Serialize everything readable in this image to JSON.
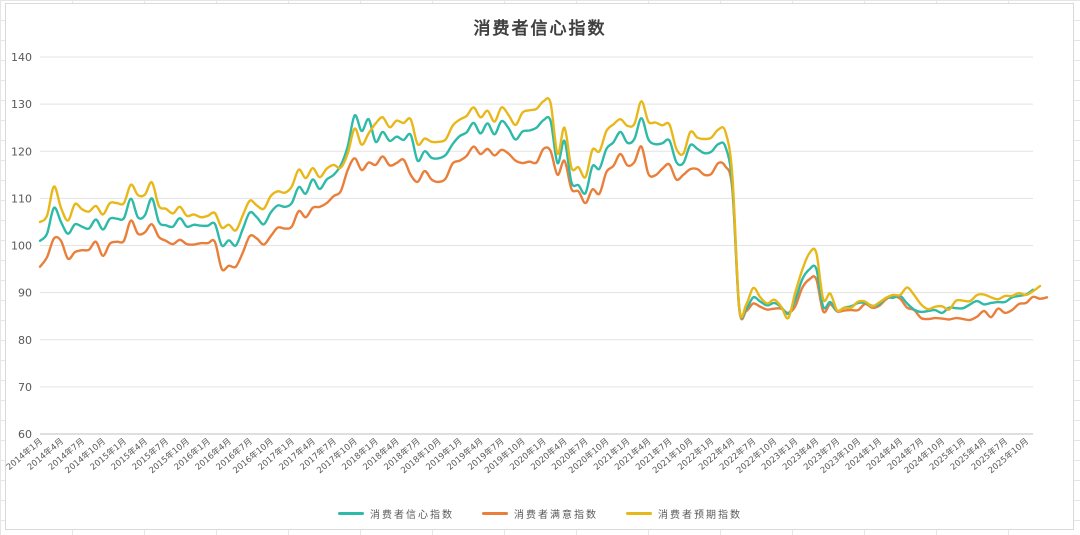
{
  "chart_data": {
    "type": "line",
    "title": "消费者信心指数",
    "xlabel": "",
    "ylabel": "",
    "ylim": [
      60,
      140
    ],
    "yticks": [
      60,
      70,
      80,
      90,
      100,
      110,
      120,
      130,
      140
    ],
    "grid": true,
    "legend": "bottom",
    "x_tick_labels": [
      "2014年1月",
      "2014年4月",
      "2014年7月",
      "2014年10月",
      "2015年1月",
      "2015年4月",
      "2015年7月",
      "2015年10月",
      "2016年1月",
      "2016年4月",
      "2016年7月",
      "2016年10月",
      "2017年1月",
      "2017年4月",
      "2017年7月",
      "2017年10月",
      "2018年1月",
      "2018年4月",
      "2018年7月",
      "2018年10月",
      "2019年1月",
      "2019年4月",
      "2019年7月",
      "2019年10月",
      "2020年1月",
      "2020年4月",
      "2020年7月",
      "2020年10月",
      "2021年1月",
      "2021年4月",
      "2021年7月",
      "2021年10月",
      "2022年1月",
      "2022年4月",
      "2022年7月",
      "2022年10月",
      "2023年1月",
      "2023年4月",
      "2023年7月",
      "2023年10月",
      "2024年1月",
      "2024年4月",
      "2024年7月",
      "2024年10月",
      "2025年1月",
      "2025年4月",
      "2025年7月",
      "2025年10月"
    ],
    "series": [
      {
        "name": "消费者信心指数",
        "color": "#2ebaa8",
        "values": [
          101,
          102.5,
          108,
          105,
          102.5,
          104.5,
          104,
          103.6,
          105.5,
          103.4,
          105.7,
          105.7,
          105.8,
          109.9,
          106,
          106.4,
          110,
          105,
          104.3,
          104,
          105.8,
          104,
          104.4,
          104.2,
          104.2,
          104.6,
          100,
          101.1,
          100,
          103.5,
          107,
          106,
          104.5,
          107,
          108.5,
          108.2,
          109,
          112.4,
          111,
          114,
          112,
          114,
          115,
          117,
          121,
          127.6,
          124.3,
          126.8,
          122,
          124.1,
          122.2,
          123.1,
          122.4,
          123.5,
          118,
          120,
          118.6,
          118.5,
          119.2,
          121.5,
          123.2,
          124,
          126,
          123.8,
          125.9,
          123.6,
          126.4,
          124.9,
          122.5,
          124.2,
          124.4,
          125,
          126.6,
          126.5,
          117.5,
          122.2,
          113.4,
          112.8,
          111.1,
          116.8,
          116.3,
          120.5,
          121.9,
          124.1,
          121.8,
          122.6,
          127,
          122.5,
          121.5,
          121.7,
          122.3,
          117.7,
          117.5,
          121.3,
          120.5,
          119.6,
          119.9,
          121.5,
          121,
          113,
          86.7,
          86.6,
          89,
          88.1,
          87.3,
          87.8,
          86.9,
          85.5,
          88.4,
          92.8,
          94.9,
          95.1,
          87,
          88,
          86.1,
          86.8,
          87.1,
          87.8,
          87.8,
          87.2,
          87.5,
          88.9,
          88.9,
          89.3,
          87.7,
          86.4,
          85.9,
          86.1,
          86.3,
          85.7,
          86.8,
          86.7,
          86.7,
          87.5,
          88.2,
          87.5,
          87.8,
          88,
          88,
          89,
          89.3,
          89.6,
          90.6
        ]
      },
      {
        "name": "消费者满意指数",
        "color": "#e97f3a",
        "values": [
          95.5,
          97.5,
          101.5,
          101,
          97.2,
          98.6,
          99,
          99.1,
          100.8,
          97.8,
          100.4,
          100.8,
          101,
          105.3,
          102.5,
          102.8,
          104.5,
          101.8,
          101,
          100.3,
          101.2,
          100.3,
          100.2,
          100.5,
          100.5,
          100.8,
          95,
          95.7,
          95.5,
          98.5,
          102,
          101.5,
          100.2,
          102,
          103.8,
          103.6,
          104,
          107.3,
          106,
          108,
          108.2,
          109,
          110.5,
          111.5,
          116,
          118.5,
          116,
          117.6,
          117.1,
          118.9,
          117,
          117.5,
          118.2,
          115,
          113.5,
          115.8,
          114,
          113.5,
          114.2,
          117.4,
          118,
          119,
          121,
          119.4,
          120.5,
          119.1,
          120.3,
          119.5,
          118,
          117.5,
          117.8,
          117.6,
          120.5,
          120.1,
          115,
          118,
          112,
          111.5,
          109,
          111.9,
          111,
          115.6,
          116.9,
          119.4,
          117,
          117.7,
          121,
          115.2,
          114.9,
          116.3,
          117.2,
          114,
          115,
          116.2,
          116.2,
          115,
          115.2,
          117.5,
          116.8,
          112,
          86.4,
          86.1,
          87.7,
          87,
          86.4,
          86.6,
          86.6,
          85.7,
          87.1,
          91,
          92.8,
          92.9,
          86,
          87.5,
          86,
          86.2,
          86.3,
          86.3,
          87.6,
          86.8,
          87.2,
          88.6,
          89.2,
          88.7,
          86.8,
          86.3,
          84.6,
          84.4,
          84.6,
          84.5,
          84.3,
          84.6,
          84.4,
          84.2,
          84.9,
          86.1,
          84.8,
          86.6,
          85.7,
          86.3,
          87.6,
          87.8,
          89.1,
          88.7,
          89
        ]
      },
      {
        "name": "消费者预期指数",
        "color": "#e8b81a",
        "values": [
          105,
          106.3,
          112.5,
          108,
          105.3,
          108.8,
          107.7,
          107.2,
          108.4,
          106.6,
          109,
          109,
          109,
          112.9,
          110.7,
          110.8,
          113.4,
          108.4,
          107.8,
          106.8,
          108.2,
          106.3,
          106.6,
          106,
          106.3,
          106.9,
          103.8,
          104.4,
          103.2,
          106.4,
          109.5,
          108.5,
          107.8,
          110.5,
          111.5,
          111.2,
          112.5,
          116.1,
          114.3,
          116.4,
          114.5,
          116.3,
          117.1,
          116.5,
          119.5,
          124.8,
          121.4,
          123.8,
          125.9,
          127.2,
          125.1,
          126.5,
          126,
          126.8,
          121.5,
          122.7,
          122,
          122,
          122.5,
          125.4,
          126.7,
          127.5,
          129.3,
          127.2,
          128.6,
          126.3,
          129.3,
          127.7,
          125.6,
          128.2,
          128.7,
          129,
          130.6,
          130.3,
          119.5,
          125,
          116.5,
          116.6,
          114.5,
          120.3,
          120,
          124.3,
          125.7,
          126.8,
          125.4,
          125.8,
          130.6,
          126.3,
          126.1,
          125.5,
          125.7,
          120.5,
          119.5,
          124.1,
          122.9,
          122.6,
          122.9,
          124.6,
          124.2,
          115,
          86.8,
          87.5,
          91,
          89,
          87.7,
          88.5,
          87,
          84.6,
          90,
          94.8,
          98.3,
          98.5,
          88.6,
          89.8,
          86.2,
          86.8,
          86.8,
          88.1,
          88.1,
          87.1,
          87.9,
          88.9,
          89.5,
          89.5,
          91.1,
          89.5,
          87.5,
          86.5,
          87,
          87.1,
          86.4,
          88.3,
          88.3,
          88.2,
          89.5,
          89.6,
          89,
          88.6,
          89.3,
          89.3,
          89.9,
          89.5,
          90.3,
          91.4
        ]
      }
    ]
  }
}
